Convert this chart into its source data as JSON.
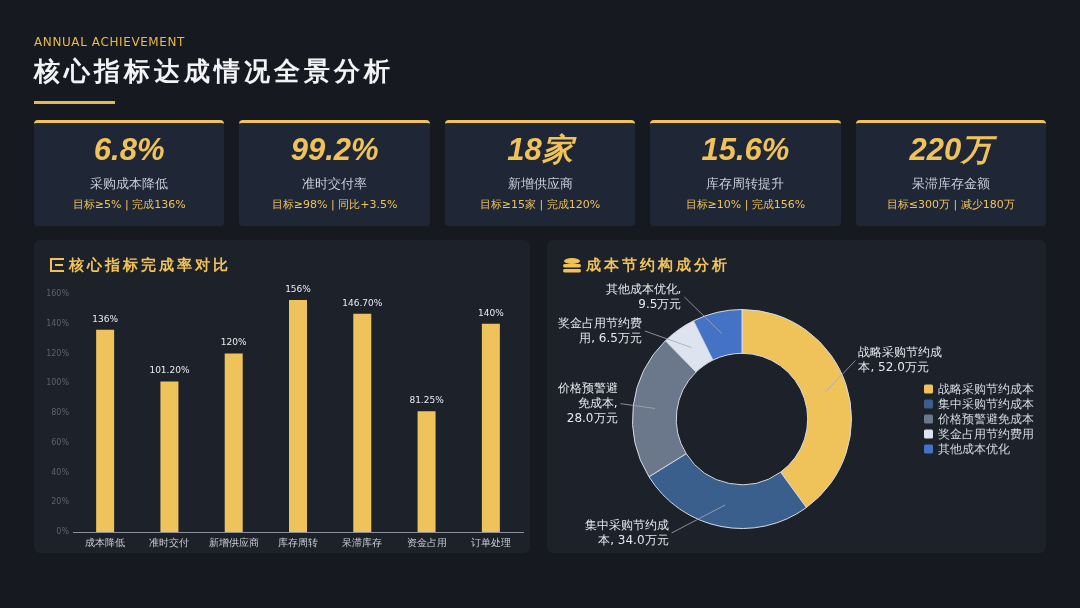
{
  "chart_data": [
    {
      "type": "other",
      "subtitle": "ANNUAL ACHIEVEMENT",
      "title": "核心指标达成情况全景分析"
    },
    {
      "type": "other",
      "title": "采购成本降低",
      "annotations": [
        "6.8%",
        "目标≥5% | 完成136%"
      ]
    },
    {
      "type": "other",
      "title": "准时交付率",
      "annotations": [
        "99.2%",
        "目标≥98% | 同比+3.5%"
      ]
    },
    {
      "type": "other",
      "title": "新增供应商",
      "annotations": [
        "18家",
        "目标≥15家 | 完成120%"
      ]
    },
    {
      "type": "other",
      "title": "库存周转提升",
      "annotations": [
        "15.6%",
        "目标≥10% | 完成156%"
      ]
    },
    {
      "type": "other",
      "title": "呆滞库存金额",
      "annotations": [
        "220万",
        "目标≤300万 | 减少180万"
      ]
    },
    {
      "type": "bar",
      "title": "核心指标完成率对比",
      "categories": [
        "成本降低",
        "准时交付",
        "新增供应商",
        "库存周转",
        "呆滞库存",
        "资金占用",
        "订单处理"
      ],
      "values": [
        136,
        101.2,
        120,
        156,
        146.7,
        81.25,
        140
      ],
      "value_labels": [
        "136%",
        "101.20%",
        "120%",
        "156%",
        "146.70%",
        "81.25%",
        "140%"
      ],
      "color": "#efc35b",
      "ylim": [
        0,
        160
      ],
      "yticks": [
        {
          "value": 0,
          "label": "0%"
        },
        {
          "value": 20,
          "label": "20%"
        },
        {
          "value": 40,
          "label": "40%"
        },
        {
          "value": 60,
          "label": "60%"
        },
        {
          "value": 80,
          "label": "80%"
        },
        {
          "value": 100,
          "label": "100%"
        },
        {
          "value": 120,
          "label": "120%"
        },
        {
          "value": 140,
          "label": "140%"
        },
        {
          "value": 160,
          "label": "160%"
        }
      ]
    },
    {
      "type": "donut",
      "title": "成本节约构成分析",
      "categories": [
        "战略采购节约成本",
        "集中采购节约成本",
        "价格预警避免成本",
        "奖金占用节约费用",
        "其他成本优化"
      ],
      "values": [
        52,
        34,
        28,
        6.5,
        9.5
      ],
      "colors": [
        "#f0c35a",
        "#3b5f8c",
        "#6b788c",
        "#dde4f0",
        "#4472c4"
      ],
      "value_labels": [
        "战略采购节约成本, 52.0万元",
        "集中采购节约成本, 34.0万元",
        "价格预警避免成本, 28.0万元",
        "奖金占用节约费用, 6.5万元",
        "其他成本优化, 9.5万元"
      ],
      "legend": "right"
    }
  ]
}
